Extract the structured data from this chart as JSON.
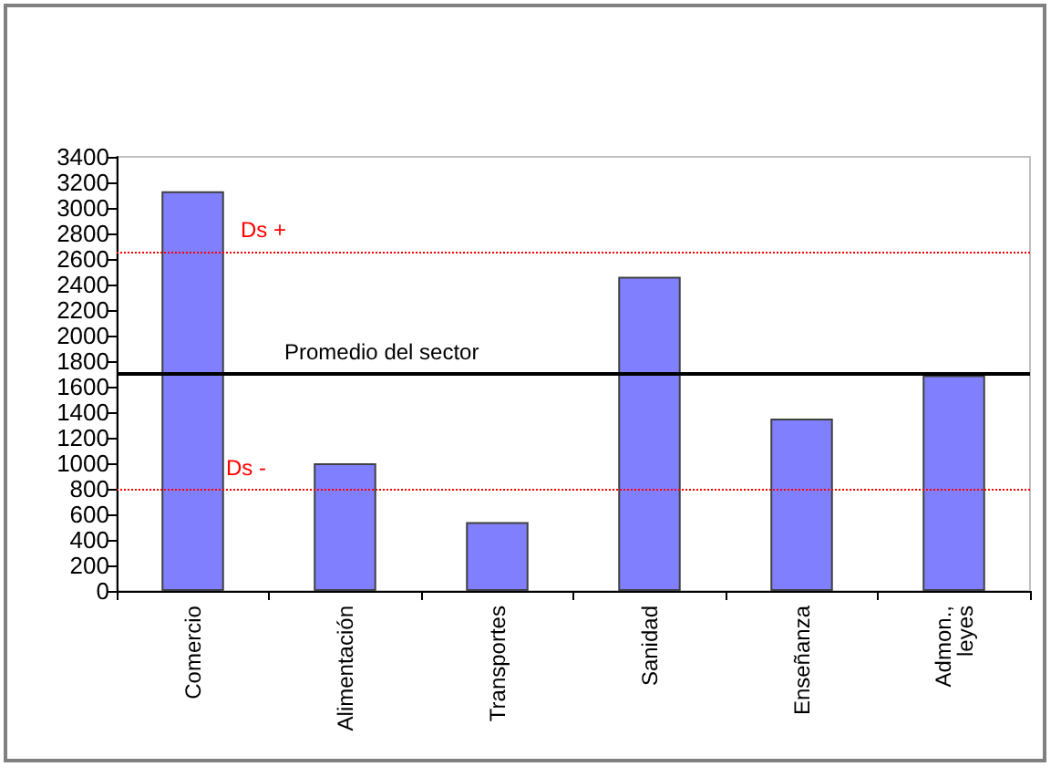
{
  "chart_data": {
    "type": "bar",
    "categories": [
      "Comercio",
      "Alimentación",
      "Transportes",
      "Sanidad",
      "Enseñanza",
      "Admon., leyes"
    ],
    "values": [
      3130,
      1000,
      540,
      2460,
      1350,
      1690
    ],
    "color": "#8080ff",
    "ylim": [
      0,
      3400
    ],
    "yticks": [
      0,
      200,
      400,
      600,
      800,
      1000,
      1200,
      1400,
      1600,
      1800,
      2000,
      2200,
      2400,
      2600,
      2800,
      3000,
      3200,
      3400
    ],
    "grid": false,
    "ref_lines": [
      {
        "axis": "y",
        "value": 2660,
        "label": "Ds +",
        "color": "#ff0000",
        "line_style": "dotted"
      },
      {
        "axis": "y",
        "value": 1700,
        "label": "Promedio del sector",
        "color": "#000000",
        "line_style": "solid"
      },
      {
        "axis": "y",
        "value": 790,
        "label": "Ds -",
        "color": "#ff0000",
        "line_style": "dotted"
      }
    ]
  }
}
